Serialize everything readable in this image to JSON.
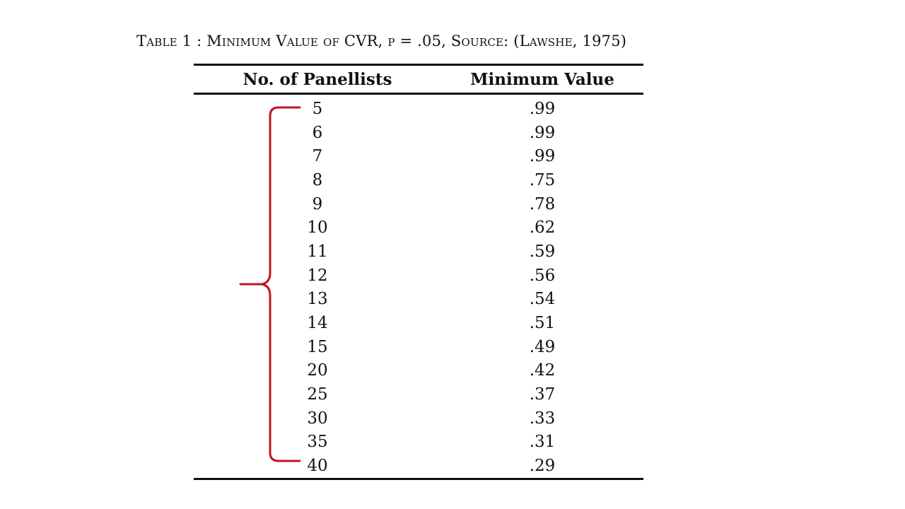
{
  "caption": "Table 1 : Minimum Value of CVR, p = .05, Source: (Lawshe, 1975)",
  "table": {
    "headers": [
      "No. of Panellists",
      "Minimum Value"
    ],
    "rows": [
      [
        "5",
        ".99"
      ],
      [
        "6",
        ".99"
      ],
      [
        "7",
        ".99"
      ],
      [
        "8",
        ".75"
      ],
      [
        "9",
        ".78"
      ],
      [
        "10",
        ".62"
      ],
      [
        "11",
        ".59"
      ],
      [
        "12",
        ".56"
      ],
      [
        "13",
        ".54"
      ],
      [
        "14",
        ".51"
      ],
      [
        "15",
        ".49"
      ],
      [
        "20",
        ".42"
      ],
      [
        "25",
        ".37"
      ],
      [
        "30",
        ".33"
      ],
      [
        "35",
        ".31"
      ],
      [
        "40",
        ".29"
      ]
    ]
  },
  "colors": {
    "brace": "#c0161c",
    "text": "#111111",
    "rule": "#111111"
  }
}
